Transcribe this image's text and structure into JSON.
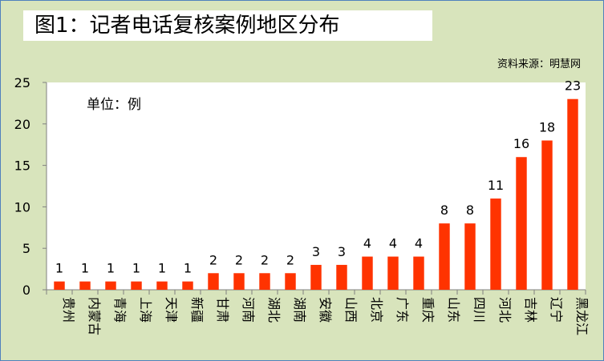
{
  "chart_data": {
    "type": "bar",
    "title": "图1：记者电话复核案例地区分布",
    "source": "资料来源：明慧网",
    "unit_label": "单位：例",
    "categories": [
      "贵州",
      "内蒙古",
      "青海",
      "上海",
      "天津",
      "新疆",
      "甘肃",
      "河南",
      "湖北",
      "湖南",
      "安徽",
      "山西",
      "北京",
      "广东",
      "重庆",
      "山东",
      "四川",
      "河北",
      "吉林",
      "辽宁",
      "黑龙江"
    ],
    "values": [
      1,
      1,
      1,
      1,
      1,
      1,
      2,
      2,
      2,
      2,
      3,
      3,
      4,
      4,
      4,
      8,
      8,
      11,
      16,
      18,
      23
    ],
    "yticks": [
      "0",
      "5",
      "10",
      "15",
      "20",
      "25"
    ],
    "ylim": [
      0,
      25
    ],
    "grid": false,
    "bar_color": "#ff3300",
    "plot_background": "#ffffff",
    "page_background": "#d8e4bc"
  }
}
